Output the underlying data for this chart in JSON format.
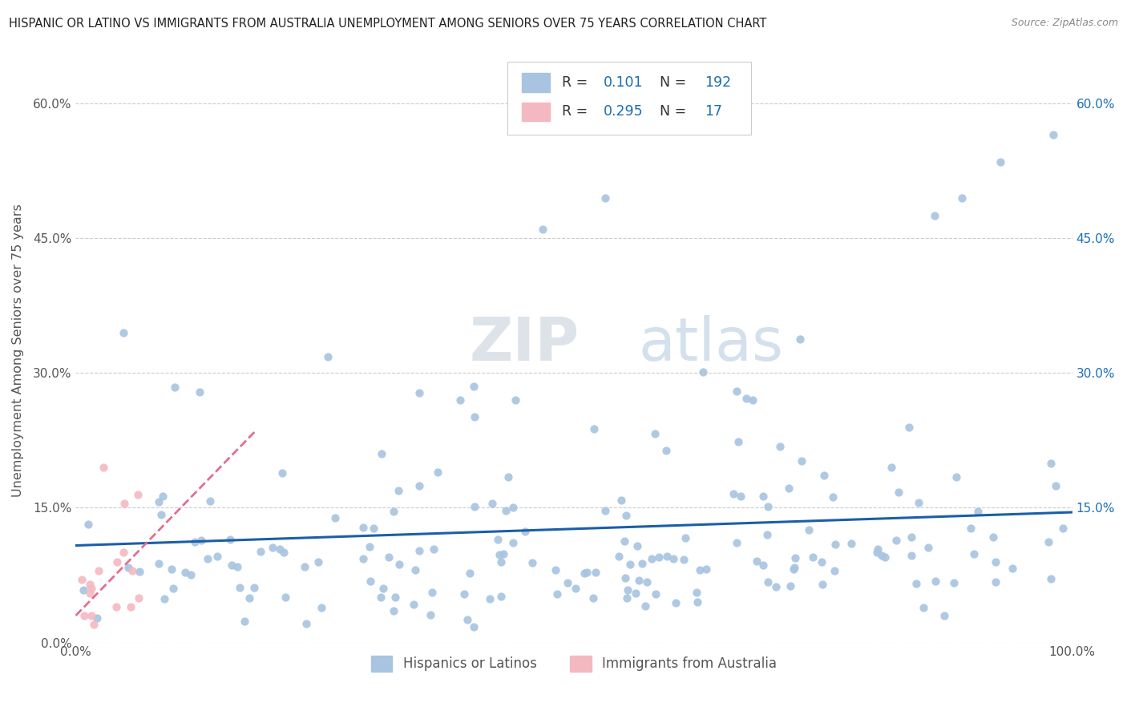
{
  "title": "HISPANIC OR LATINO VS IMMIGRANTS FROM AUSTRALIA UNEMPLOYMENT AMONG SENIORS OVER 75 YEARS CORRELATION CHART",
  "source": "Source: ZipAtlas.com",
  "ylabel": "Unemployment Among Seniors over 75 years",
  "xmin": 0.0,
  "xmax": 1.0,
  "ymin": 0.0,
  "ymax": 0.65,
  "yticks": [
    0.0,
    0.15,
    0.3,
    0.45,
    0.6
  ],
  "ytick_labels_left": [
    "0.0%",
    "15.0%",
    "30.0%",
    "45.0%",
    "60.0%"
  ],
  "ytick_labels_right": [
    "",
    "15.0%",
    "30.0%",
    "45.0%",
    "60.0%"
  ],
  "xtick_labels": [
    "0.0%",
    "100.0%"
  ],
  "blue_R": 0.101,
  "blue_N": 192,
  "pink_R": 0.295,
  "pink_N": 17,
  "blue_color": "#a8c4e0",
  "pink_color": "#f4b8c1",
  "blue_line_color": "#1a5fa8",
  "pink_line_color": "#e07090",
  "legend_label_blue": "Hispanics or Latinos",
  "legend_label_pink": "Immigrants from Australia",
  "blue_trend_x0": 0.0,
  "blue_trend_x1": 1.0,
  "blue_trend_y0": 0.108,
  "blue_trend_y1": 0.145,
  "pink_trend_x0": 0.0,
  "pink_trend_x1": 0.18,
  "pink_trend_y0": 0.03,
  "pink_trend_y1": 0.235
}
